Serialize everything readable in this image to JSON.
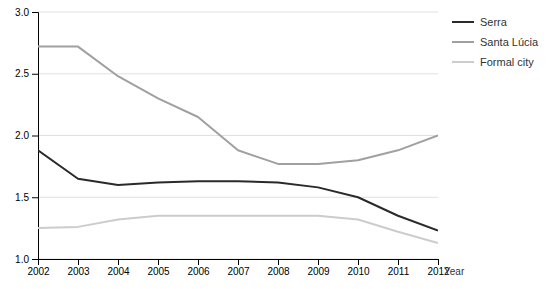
{
  "chart_data": {
    "type": "line",
    "x": [
      2002,
      2003,
      2004,
      2005,
      2006,
      2007,
      2008,
      2009,
      2010,
      2011,
      2012
    ],
    "series": [
      {
        "name": "Serra",
        "color": "#2a2a2a",
        "values": [
          1.88,
          1.65,
          1.6,
          1.62,
          1.63,
          1.63,
          1.62,
          1.58,
          1.5,
          1.35,
          1.23
        ]
      },
      {
        "name": "Santa Lúcia",
        "color": "#a0a0a0",
        "values": [
          2.72,
          2.72,
          2.48,
          2.3,
          2.15,
          1.88,
          1.77,
          1.77,
          1.8,
          1.88,
          2.0
        ]
      },
      {
        "name": "Formal city",
        "color": "#cccccc",
        "values": [
          1.25,
          1.26,
          1.32,
          1.35,
          1.35,
          1.35,
          1.35,
          1.35,
          1.32,
          1.22,
          1.13
        ]
      }
    ],
    "xlabel": "Year",
    "xlim": [
      2002,
      2012
    ],
    "xticks": [
      2002,
      2003,
      2004,
      2005,
      2006,
      2007,
      2008,
      2009,
      2010,
      2011,
      2012
    ],
    "ylim": [
      1.0,
      3.0
    ],
    "yticks": [
      {
        "value": 1.0,
        "label": "1.0"
      },
      1.5,
      {
        "value": 2.0,
        "label": "2.0"
      },
      2.5,
      {
        "value": 3.0,
        "label": "3.0"
      }
    ],
    "grid": true,
    "legend": "right"
  }
}
